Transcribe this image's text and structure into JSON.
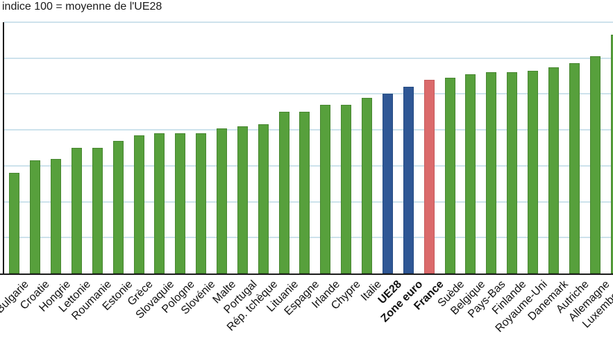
{
  "title": "indice 100 = moyenne de l'UE28",
  "chart_data": {
    "type": "bar",
    "title": "indice 100 = moyenne de l'UE28",
    "xlabel": "",
    "ylabel": "",
    "ylim": [
      0,
      140
    ],
    "ytick_step": 20,
    "grid": true,
    "ytick_labels_visible": false,
    "legend": "none",
    "colors": {
      "member": "#57A03C",
      "aggregate": "#2F5795",
      "france": "#DB6A6B",
      "gridline": "#CDE2EC",
      "axis": "#1A1A1A"
    },
    "categories": [
      "Bulgarie",
      "Croatie",
      "Hongrie",
      "Lettonie",
      "Roumanie",
      "Estonie",
      "Grèce",
      "Slovaquie",
      "Pologne",
      "Slovénie",
      "Malte",
      "Portugal",
      "Rép. tchèque",
      "Lituanie",
      "Espagne",
      "Irlande",
      "Chypre",
      "Italie",
      "UE28",
      "Zone euro",
      "France",
      "Suède",
      "Belgique",
      "Pays-Bas",
      "Finlande",
      "Royaume-Uni",
      "Danemark",
      "Autriche",
      "Allemagne",
      "Luxembourg"
    ],
    "values": [
      56,
      63,
      64,
      70,
      70,
      74,
      77,
      78,
      78,
      78,
      81,
      82,
      83,
      90,
      90,
      94,
      94,
      98,
      100,
      104,
      108,
      109,
      111,
      112,
      112,
      113,
      115,
      117,
      121,
      133
    ],
    "bars": [
      {
        "label": "Bulgarie",
        "value": 56,
        "group": "member",
        "bold": false
      },
      {
        "label": "Croatie",
        "value": 63,
        "group": "member",
        "bold": false
      },
      {
        "label": "Hongrie",
        "value": 64,
        "group": "member",
        "bold": false
      },
      {
        "label": "Lettonie",
        "value": 70,
        "group": "member",
        "bold": false
      },
      {
        "label": "Roumanie",
        "value": 70,
        "group": "member",
        "bold": false
      },
      {
        "label": "Estonie",
        "value": 74,
        "group": "member",
        "bold": false
      },
      {
        "label": "Grèce",
        "value": 77,
        "group": "member",
        "bold": false
      },
      {
        "label": "Slovaquie",
        "value": 78,
        "group": "member",
        "bold": false
      },
      {
        "label": "Pologne",
        "value": 78,
        "group": "member",
        "bold": false
      },
      {
        "label": "Slovénie",
        "value": 78,
        "group": "member",
        "bold": false
      },
      {
        "label": "Malte",
        "value": 81,
        "group": "member",
        "bold": false
      },
      {
        "label": "Portugal",
        "value": 82,
        "group": "member",
        "bold": false
      },
      {
        "label": "Rép. tchèque",
        "value": 83,
        "group": "member",
        "bold": false
      },
      {
        "label": "Lituanie",
        "value": 90,
        "group": "member",
        "bold": false
      },
      {
        "label": "Espagne",
        "value": 90,
        "group": "member",
        "bold": false
      },
      {
        "label": "Irlande",
        "value": 94,
        "group": "member",
        "bold": false
      },
      {
        "label": "Chypre",
        "value": 94,
        "group": "member",
        "bold": false
      },
      {
        "label": "Italie",
        "value": 98,
        "group": "member",
        "bold": false
      },
      {
        "label": "UE28",
        "value": 100,
        "group": "aggregate",
        "bold": true
      },
      {
        "label": "Zone euro",
        "value": 104,
        "group": "aggregate",
        "bold": true
      },
      {
        "label": "France",
        "value": 108,
        "group": "france",
        "bold": true
      },
      {
        "label": "Suède",
        "value": 109,
        "group": "member",
        "bold": false
      },
      {
        "label": "Belgique",
        "value": 111,
        "group": "member",
        "bold": false
      },
      {
        "label": "Pays-Bas",
        "value": 112,
        "group": "member",
        "bold": false
      },
      {
        "label": "Finlande",
        "value": 112,
        "group": "member",
        "bold": false
      },
      {
        "label": "Royaume-Uni",
        "value": 113,
        "group": "member",
        "bold": false
      },
      {
        "label": "Danemark",
        "value": 115,
        "group": "member",
        "bold": false
      },
      {
        "label": "Autriche",
        "value": 117,
        "group": "member",
        "bold": false
      },
      {
        "label": "Allemagne",
        "value": 121,
        "group": "member",
        "bold": false
      },
      {
        "label": "Luxembourg",
        "value": 133,
        "group": "member",
        "bold": false
      }
    ]
  }
}
